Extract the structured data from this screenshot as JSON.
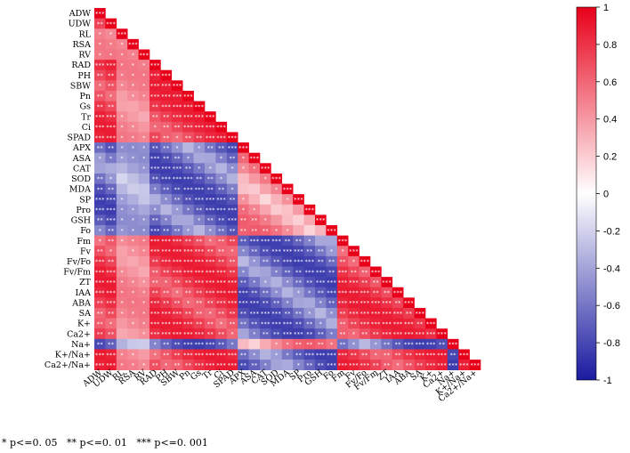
{
  "chart_data": {
    "type": "heatmap",
    "variables": [
      "ADW",
      "UDW",
      "RL",
      "RSA",
      "RV",
      "RAD",
      "PH",
      "SBW",
      "Pn",
      "Gs",
      "Tr",
      "Ci",
      "SPAD",
      "APX",
      "ASA",
      "CAT",
      "SOD",
      "MDA",
      "SP",
      "Pro",
      "GSH",
      "Fo",
      "Fm",
      "Fv",
      "Fv/Fo",
      "Fv/Fm",
      "ZT",
      "IAA",
      "ABA",
      "SA",
      "K+",
      "Ca2+",
      "Na+",
      "K+/Na+",
      "Ca2+/Na+"
    ],
    "layout": "lower-triangle",
    "colorbar": {
      "min": -1,
      "max": 1,
      "ticks": [
        "1",
        "0.8",
        "0.6",
        "0.4",
        "0.2",
        "0",
        "-0.2",
        "-0.4",
        "-0.6",
        "-0.8",
        "-1"
      ],
      "colors": {
        "positive": "#e8001a",
        "zero": "#ffffff",
        "negative": "#1a1aa0"
      }
    },
    "significance_note": "* p<=0. 05   ** p<=0. 01   *** p<=0. 001"
  },
  "colors": {
    "positive": "#e8001a",
    "negative": "#1a1aa0"
  }
}
